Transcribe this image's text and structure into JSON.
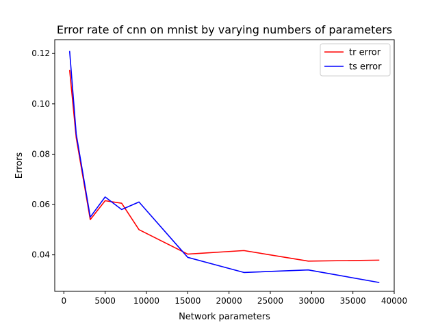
{
  "chart_data": {
    "type": "line",
    "title": "Error rate of cnn on mnist by varying numbers of parameters",
    "xlabel": "Network parameters",
    "ylabel": "Errors",
    "xlim": [
      -1100,
      40000
    ],
    "ylim": [
      0.0255,
      0.1255
    ],
    "xticks": [
      0,
      5000,
      10000,
      15000,
      20000,
      25000,
      30000,
      35000,
      40000
    ],
    "xtick_labels": [
      "0",
      "5000",
      "10000",
      "15000",
      "20000",
      "25000",
      "30000",
      "35000",
      "40000"
    ],
    "yticks": [
      0.04,
      0.06,
      0.08,
      0.1,
      0.12
    ],
    "ytick_labels": [
      "0.04",
      "0.06",
      "0.08",
      "0.10",
      "0.12"
    ],
    "grid": false,
    "legend_position": "upper right",
    "series": [
      {
        "name": "tr error",
        "color": "#ff0000",
        "x": [
          700,
          1500,
          3200,
          5000,
          7000,
          9100,
          15000,
          21800,
          29600,
          38200
        ],
        "y": [
          0.1135,
          0.0865,
          0.054,
          0.0615,
          0.0605,
          0.05,
          0.0403,
          0.0417,
          0.0375,
          0.0379
        ]
      },
      {
        "name": "ts error",
        "color": "#0000ff",
        "x": [
          700,
          1500,
          3200,
          5000,
          7000,
          9100,
          15000,
          21800,
          29600,
          38200
        ],
        "y": [
          0.121,
          0.088,
          0.055,
          0.063,
          0.058,
          0.061,
          0.039,
          0.033,
          0.034,
          0.029
        ]
      }
    ]
  }
}
